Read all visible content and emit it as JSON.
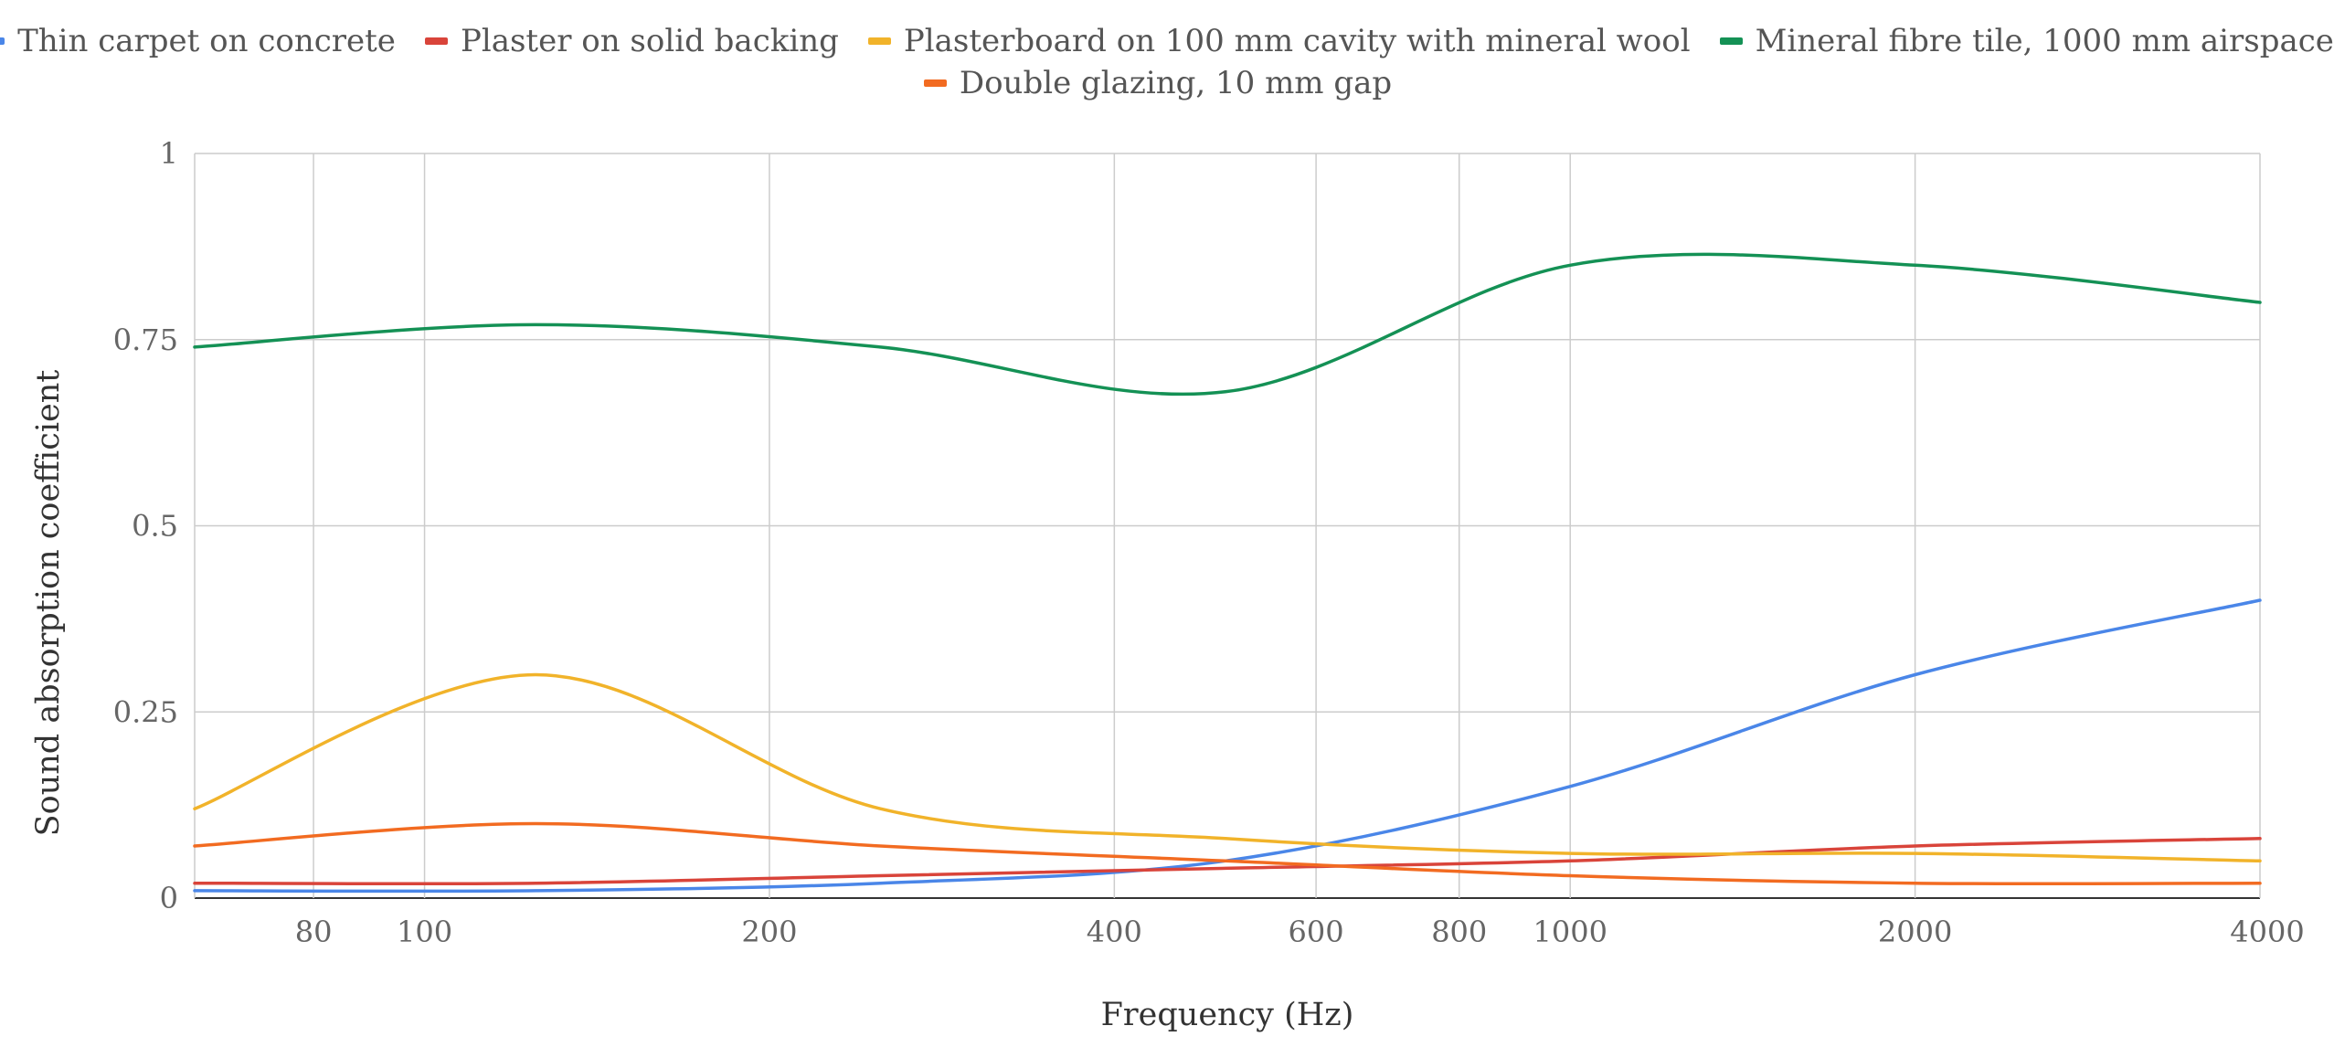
{
  "chart_data": {
    "type": "line",
    "xlabel": "Frequency (Hz)",
    "ylabel": "Sound absorption coefficient",
    "x_scale": "log",
    "xlim": [
      63,
      4000
    ],
    "ylim": [
      0,
      1
    ],
    "x_ticks": [
      80,
      100,
      200,
      400,
      600,
      800,
      1000,
      2000,
      4000
    ],
    "x_tick_labels": [
      "80",
      "100",
      "200",
      "400",
      "600",
      "800",
      "1000",
      "2000",
      "4000"
    ],
    "y_ticks": [
      0,
      0.25,
      0.5,
      0.75,
      1
    ],
    "y_tick_labels": [
      "0",
      "0.25",
      "0.5",
      "0.75",
      "1"
    ],
    "grid": true,
    "legend_position": "top",
    "x": [
      63,
      125,
      250,
      500,
      1000,
      2000,
      4000
    ],
    "series": [
      {
        "name": "Thin carpet on concrete",
        "color": "#4a86e8",
        "values": [
          0.01,
          0.01,
          0.02,
          0.05,
          0.15,
          0.3,
          0.4
        ]
      },
      {
        "name": "Plaster on solid backing",
        "color": "#d9443a",
        "values": [
          0.02,
          0.02,
          0.03,
          0.04,
          0.05,
          0.07,
          0.08
        ]
      },
      {
        "name": "Plasterboard on 100 mm cavity with mineral wool",
        "color": "#f1b32a",
        "values": [
          0.12,
          0.3,
          0.12,
          0.08,
          0.06,
          0.06,
          0.05
        ]
      },
      {
        "name": "Mineral fibre tile, 1000 mm airspace",
        "color": "#149155",
        "values": [
          0.74,
          0.77,
          0.74,
          0.68,
          0.85,
          0.85,
          0.8
        ]
      },
      {
        "name": "Double glazing, 10 mm gap",
        "color": "#f26b21",
        "values": [
          0.07,
          0.1,
          0.07,
          0.05,
          0.03,
          0.02,
          0.02
        ]
      }
    ]
  }
}
